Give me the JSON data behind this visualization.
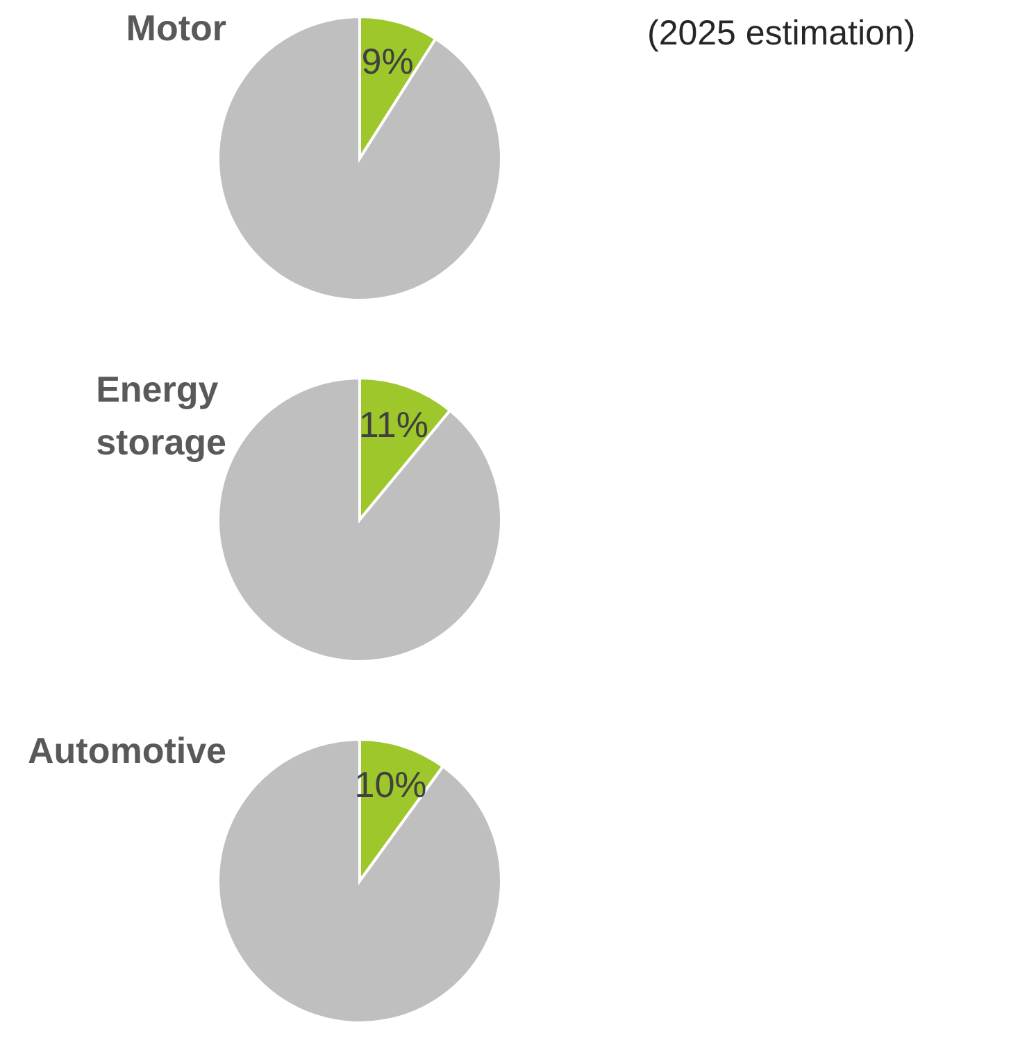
{
  "chart_data": [
    {
      "type": "pie",
      "title": "Motor",
      "subtitle": "(2025 estimation)",
      "categories": [
        null,
        null
      ],
      "values": [
        9,
        91
      ],
      "colors": [
        "#9dc72a",
        "#bfbfbf"
      ],
      "value_labels": [
        "9%",
        null
      ]
    },
    {
      "type": "pie",
      "title": "Energy storage",
      "categories": [
        null,
        null
      ],
      "values": [
        11,
        89
      ],
      "colors": [
        "#9dc72a",
        "#bfbfbf"
      ],
      "value_labels": [
        "11%",
        null
      ]
    },
    {
      "type": "pie",
      "title": "Automotive",
      "categories": [
        null,
        null
      ],
      "values": [
        10,
        90
      ],
      "colors": [
        "#9dc72a",
        "#bfbfbf"
      ],
      "value_labels": [
        "10%",
        null
      ]
    }
  ]
}
